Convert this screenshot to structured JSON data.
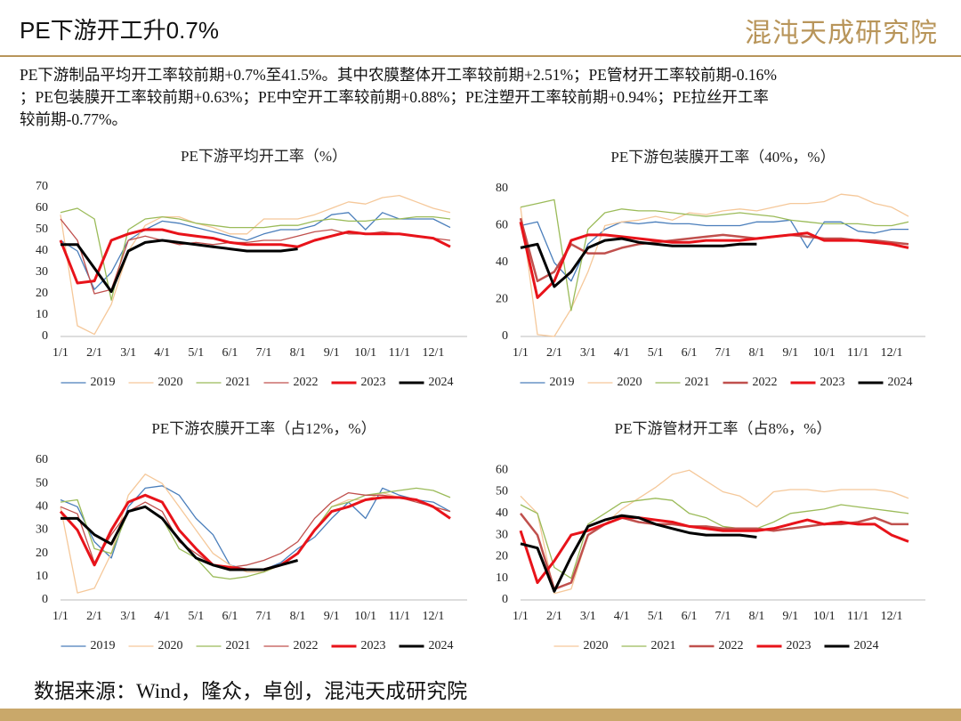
{
  "header": {
    "title": "PE下游开工升0.7%",
    "logo": "混沌天成研究院"
  },
  "summary": [
    "PE下游制品平均开工率较前期+0.7%至41.5%。其中农膜整体开工率较前期+2.51%；PE管材开工率较前期-0.16%",
    "；PE包装膜开工率较前期+0.63%；PE中空开工率较前期+0.88%；PE注塑开工率较前期+0.94%；PE拉丝开工率",
    "较前期-0.77%。"
  ],
  "source": "数据来源：Wind，隆众，卓创，混沌天成研究院",
  "chart_data": [
    {
      "type": "line",
      "title": "PE下游平均开工率（%）",
      "categories": [
        "1/1",
        null,
        "2/1",
        null,
        "3/1",
        null,
        "4/1",
        null,
        "5/1",
        null,
        "6/1",
        null,
        "7/1",
        null,
        "8/1",
        null,
        "9/1",
        null,
        "10/1",
        null,
        "11/1",
        null,
        "12/1",
        null
      ],
      "ylim": [
        0,
        70
      ],
      "yticks": [
        0,
        10,
        20,
        30,
        40,
        50,
        60,
        70
      ],
      "grid": false,
      "series": [
        {
          "name": "2019",
          "color": "#4a7ebb",
          "line_width": 1.3,
          "values": [
            45,
            40,
            22,
            30,
            45,
            50,
            54,
            53,
            51,
            49,
            47,
            45,
            48,
            50,
            50,
            52,
            57,
            58,
            50,
            58,
            55,
            55,
            55,
            51
          ]
        },
        {
          "name": "2020",
          "color": "#f5c89a",
          "line_width": 1.3,
          "values": [
            57,
            5,
            1,
            15,
            40,
            52,
            56,
            56,
            53,
            51,
            48,
            48,
            55,
            55,
            55,
            57,
            60,
            63,
            62,
            65,
            66,
            63,
            60,
            58
          ]
        },
        {
          "name": "2021",
          "color": "#9bbb59",
          "line_width": 1.3,
          "values": [
            58,
            60,
            55,
            17,
            50,
            55,
            56,
            55,
            53,
            52,
            51,
            51,
            51,
            52,
            52,
            54,
            55,
            54,
            54,
            55,
            55,
            56,
            56,
            55
          ]
        },
        {
          "name": "2022",
          "color": "#c0504d",
          "line_width": 1.3,
          "values": [
            55,
            45,
            20,
            22,
            45,
            47,
            45,
            43,
            44,
            43,
            44,
            44,
            45,
            45,
            47,
            49,
            50,
            48,
            48,
            49,
            48,
            47,
            46,
            45
          ]
        },
        {
          "name": "2023",
          "color": "#e8131a",
          "line_width": 3,
          "values": [
            45,
            25,
            26,
            45,
            48,
            50,
            50,
            48,
            47,
            46,
            44,
            43,
            43,
            43,
            42,
            45,
            47,
            49,
            48,
            48,
            48,
            47,
            46,
            42
          ]
        },
        {
          "name": "2024",
          "color": "#000000",
          "line_width": 3,
          "values": [
            43,
            43,
            32,
            21,
            40,
            44,
            45,
            44,
            43,
            42,
            41,
            40,
            40,
            40,
            41,
            null,
            null,
            null,
            null,
            null,
            null,
            null,
            null,
            null
          ]
        }
      ]
    },
    {
      "type": "line",
      "title": "PE下游包装膜开工率（40%，%）",
      "categories": [
        "1/1",
        null,
        "2/1",
        null,
        "3/1",
        null,
        "4/1",
        null,
        "5/1",
        null,
        "6/1",
        null,
        "7/1",
        null,
        "8/1",
        null,
        "9/1",
        null,
        "10/1",
        null,
        "11/1",
        null,
        "12/1",
        null
      ],
      "ylim": [
        0,
        80
      ],
      "yticks": [
        0,
        20,
        40,
        60,
        80
      ],
      "grid": false,
      "series": [
        {
          "name": "2019",
          "color": "#4a7ebb",
          "line_width": 1.3,
          "values": [
            60,
            62,
            40,
            30,
            50,
            58,
            62,
            61,
            62,
            61,
            61,
            60,
            60,
            60,
            62,
            62,
            63,
            48,
            62,
            62,
            57,
            56,
            58,
            58
          ]
        },
        {
          "name": "2020",
          "color": "#f5c89a",
          "line_width": 1.3,
          "values": [
            70,
            1,
            0,
            15,
            35,
            60,
            62,
            63,
            65,
            63,
            67,
            66,
            68,
            69,
            68,
            70,
            72,
            72,
            73,
            77,
            76,
            72,
            70,
            65
          ]
        },
        {
          "name": "2021",
          "color": "#9bbb59",
          "line_width": 1.3,
          "values": [
            70,
            72,
            74,
            14,
            58,
            67,
            69,
            68,
            68,
            67,
            66,
            65,
            66,
            67,
            66,
            65,
            63,
            62,
            61,
            61,
            61,
            60,
            60,
            62
          ]
        },
        {
          "name": "2022",
          "color": "#c0504d",
          "line_width": 2.5,
          "values": [
            64,
            30,
            35,
            50,
            45,
            45,
            48,
            50,
            51,
            52,
            53,
            54,
            55,
            54,
            53,
            54,
            55,
            54,
            53,
            53,
            52,
            52,
            51,
            50
          ]
        },
        {
          "name": "2023",
          "color": "#e8131a",
          "line_width": 3,
          "values": [
            62,
            21,
            30,
            52,
            55,
            55,
            54,
            53,
            52,
            51,
            51,
            52,
            52,
            52,
            53,
            54,
            55,
            56,
            52,
            52,
            52,
            51,
            50,
            48
          ]
        },
        {
          "name": "2024",
          "color": "#000000",
          "line_width": 3,
          "values": [
            48,
            50,
            27,
            35,
            48,
            52,
            53,
            51,
            50,
            49,
            49,
            49,
            49,
            50,
            50,
            null,
            null,
            null,
            null,
            null,
            null,
            null,
            null,
            null
          ]
        }
      ]
    },
    {
      "type": "line",
      "title": "PE下游农膜开工率（占12%，%）",
      "categories": [
        "1/1",
        null,
        "2/1",
        null,
        "3/1",
        null,
        "4/1",
        null,
        "5/1",
        null,
        "6/1",
        null,
        "7/1",
        null,
        "8/1",
        null,
        "9/1",
        null,
        "10/1",
        null,
        "11/1",
        null,
        "12/1",
        null
      ],
      "ylim": [
        0,
        60
      ],
      "yticks": [
        0,
        10,
        20,
        30,
        40,
        50,
        60
      ],
      "grid": false,
      "series": [
        {
          "name": "2019",
          "color": "#4a7ebb",
          "line_width": 1.3,
          "values": [
            43,
            40,
            25,
            18,
            40,
            48,
            49,
            45,
            35,
            28,
            15,
            13,
            13,
            16,
            22,
            27,
            35,
            42,
            35,
            48,
            45,
            43,
            42,
            38
          ]
        },
        {
          "name": "2020",
          "color": "#f5c89a",
          "line_width": 1.3,
          "values": [
            40,
            3,
            5,
            20,
            45,
            54,
            50,
            40,
            30,
            20,
            15,
            12,
            12,
            15,
            20,
            30,
            40,
            43,
            43,
            46,
            44,
            43,
            40,
            38
          ]
        },
        {
          "name": "2021",
          "color": "#9bbb59",
          "line_width": 1.3,
          "values": [
            42,
            43,
            22,
            20,
            38,
            40,
            35,
            22,
            18,
            10,
            9,
            10,
            12,
            15,
            20,
            30,
            40,
            42,
            45,
            46,
            47,
            48,
            47,
            44
          ]
        },
        {
          "name": "2022",
          "color": "#c0504d",
          "line_width": 1.3,
          "values": [
            40,
            37,
            16,
            28,
            38,
            42,
            38,
            25,
            20,
            15,
            14,
            15,
            17,
            20,
            25,
            35,
            42,
            46,
            45,
            45,
            44,
            42,
            40,
            38
          ]
        },
        {
          "name": "2023",
          "color": "#e8131a",
          "line_width": 3,
          "values": [
            38,
            30,
            15,
            30,
            42,
            45,
            42,
            30,
            22,
            15,
            14,
            13,
            13,
            15,
            20,
            30,
            38,
            40,
            43,
            44,
            44,
            43,
            40,
            35
          ]
        },
        {
          "name": "2024",
          "color": "#000000",
          "line_width": 3,
          "values": [
            35,
            35,
            28,
            24,
            38,
            40,
            35,
            26,
            18,
            15,
            13,
            13,
            13,
            15,
            17,
            null,
            null,
            null,
            null,
            null,
            null,
            null,
            null,
            null
          ]
        }
      ]
    },
    {
      "type": "line",
      "title": "PE下游管材开工率（占8%，%）",
      "categories": [
        "1/1",
        null,
        "2/1",
        null,
        "3/1",
        null,
        "4/1",
        null,
        "5/1",
        null,
        "6/1",
        null,
        "7/1",
        null,
        "8/1",
        null,
        "9/1",
        null,
        "10/1",
        null,
        "11/1",
        null,
        "12/1",
        null
      ],
      "ylim": [
        0,
        65
      ],
      "yticks": [
        0,
        10,
        20,
        30,
        40,
        50,
        60
      ],
      "grid": false,
      "series": [
        {
          "name": "2020",
          "color": "#f5c89a",
          "line_width": 1.3,
          "values": [
            48,
            40,
            3,
            5,
            30,
            35,
            42,
            47,
            52,
            58,
            60,
            55,
            50,
            48,
            43,
            50,
            51,
            51,
            50,
            51,
            51,
            51,
            50,
            47
          ]
        },
        {
          "name": "2021",
          "color": "#9bbb59",
          "line_width": 1.3,
          "values": [
            44,
            40,
            15,
            10,
            35,
            40,
            45,
            46,
            47,
            46,
            40,
            38,
            34,
            33,
            33,
            36,
            40,
            41,
            42,
            44,
            43,
            42,
            41,
            40
          ]
        },
        {
          "name": "2022",
          "color": "#c0504d",
          "line_width": 2.5,
          "values": [
            40,
            30,
            5,
            8,
            30,
            35,
            38,
            36,
            35,
            35,
            34,
            34,
            33,
            33,
            33,
            32,
            33,
            34,
            35,
            35,
            36,
            38,
            35,
            35
          ]
        },
        {
          "name": "2023",
          "color": "#e8131a",
          "line_width": 3,
          "values": [
            32,
            8,
            18,
            30,
            32,
            35,
            38,
            38,
            37,
            36,
            34,
            33,
            32,
            32,
            32,
            33,
            35,
            37,
            35,
            36,
            35,
            35,
            30,
            27
          ]
        },
        {
          "name": "2024",
          "color": "#000000",
          "line_width": 3,
          "values": [
            26,
            24,
            4,
            20,
            34,
            37,
            39,
            38,
            35,
            33,
            31,
            30,
            30,
            30,
            29,
            null,
            null,
            null,
            null,
            null,
            null,
            null,
            null,
            null
          ]
        }
      ]
    }
  ]
}
